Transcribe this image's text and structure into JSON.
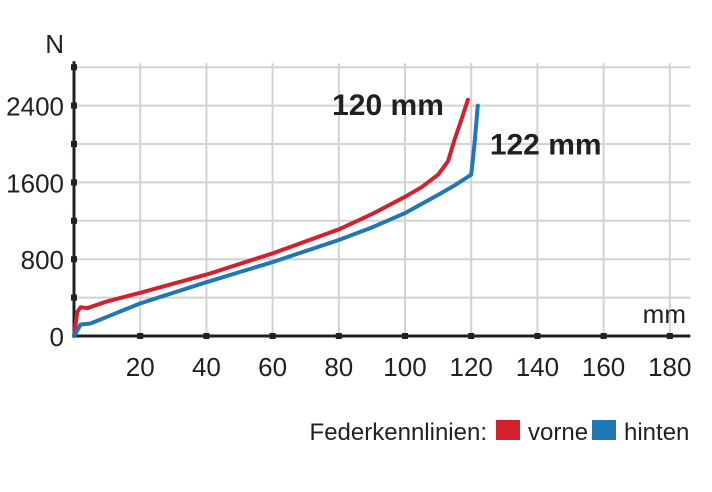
{
  "chart_data": {
    "type": "line",
    "xlabel": "mm",
    "ylabel": "N",
    "xlim": [
      0,
      185
    ],
    "ylim": [
      0,
      2800
    ],
    "xticks": [
      "20",
      "40",
      "60",
      "80",
      "100",
      "120",
      "140",
      "160",
      "180"
    ],
    "yticks": [
      "0",
      "800",
      "1600",
      "2400"
    ],
    "grid": true,
    "legend": {
      "title": "Federkennlinien:",
      "placement": "bottom-right"
    },
    "series": [
      {
        "name": "vorne",
        "color": "#d2202f",
        "x": [
          0,
          1,
          2,
          4,
          10,
          20,
          40,
          60,
          80,
          90,
          100,
          105,
          110,
          113,
          115,
          117,
          119
        ],
        "y": [
          0,
          250,
          300,
          290,
          360,
          450,
          640,
          860,
          1110,
          1270,
          1450,
          1550,
          1680,
          1820,
          2050,
          2250,
          2460
        ]
      },
      {
        "name": "hinten",
        "color": "#1f78b4",
        "x": [
          0,
          1,
          2,
          5,
          10,
          20,
          40,
          60,
          80,
          90,
          100,
          110,
          115,
          120,
          121,
          122
        ],
        "y": [
          0,
          60,
          120,
          130,
          200,
          340,
          560,
          770,
          1000,
          1130,
          1280,
          1470,
          1570,
          1680,
          2000,
          2400
        ]
      }
    ],
    "annotations": [
      {
        "text": "120 mm"
      },
      {
        "text": "122 mm"
      }
    ]
  }
}
